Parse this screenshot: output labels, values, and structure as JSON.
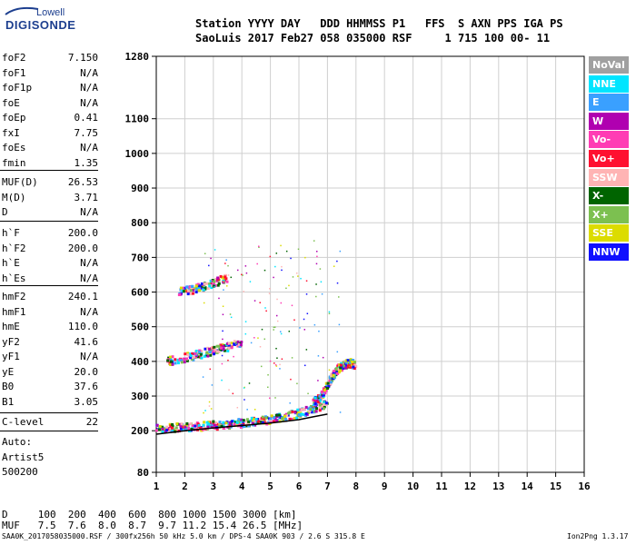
{
  "logo": {
    "top": "Lowell",
    "main": "DIGISONDE"
  },
  "header": {
    "line1": "Station YYYY DAY   DDD HHMMSS P1   FFS  S AXN PPS IGA PS",
    "line2": "SaoLuis 2017 Feb27 058 035000 RSF     1 715 100 00- 11"
  },
  "params_a": [
    {
      "label": "foF2",
      "value": "7.150"
    },
    {
      "label": "foF1",
      "value": "N/A"
    },
    {
      "label": "foF1p",
      "value": "N/A"
    },
    {
      "label": "foE",
      "value": "N/A"
    },
    {
      "label": "foEp",
      "value": "0.41"
    },
    {
      "label": "fxI",
      "value": "7.75"
    },
    {
      "label": "foEs",
      "value": "N/A"
    },
    {
      "label": "fmin",
      "value": "1.35"
    }
  ],
  "params_b": [
    {
      "label": "MUF(D)",
      "value": "26.53"
    },
    {
      "label": "M(D)",
      "value": "3.71"
    },
    {
      "label": "D",
      "value": "N/A"
    }
  ],
  "params_c": [
    {
      "label": "h`F",
      "value": "200.0"
    },
    {
      "label": "h`F2",
      "value": "200.0"
    },
    {
      "label": "h`E",
      "value": "N/A"
    },
    {
      "label": "h`Es",
      "value": "N/A"
    }
  ],
  "params_d": [
    {
      "label": "hmF2",
      "value": "240.1"
    },
    {
      "label": "hmF1",
      "value": "N/A"
    },
    {
      "label": "hmE",
      "value": "110.0"
    },
    {
      "label": "yF2",
      "value": "41.6"
    },
    {
      "label": "yF1",
      "value": "N/A"
    },
    {
      "label": "yE",
      "value": "20.0"
    },
    {
      "label": "B0",
      "value": "37.6"
    },
    {
      "label": "B1",
      "value": "3.05"
    }
  ],
  "clevel": {
    "label": "C-level",
    "value": "22"
  },
  "auto": {
    "line1": "Auto:",
    "line2": "Artist5",
    "line3": "500200"
  },
  "bottom": {
    "d_line": "D     100  200  400  600  800 1000 1500 3000 [km]",
    "muf_line": "MUF   7.5  7.6  8.0  8.7  9.7 11.2 15.4 26.5 [MHz]"
  },
  "footer": {
    "left": "SAA0K_2017058035000.RSF / 300fx256h 50 kHz 5.0 km / DPS-4 SAA0K 903 / 2.6 S 315.8 E",
    "right": "Ion2Png 1.3.17"
  },
  "legend": [
    {
      "label": "NoVal",
      "bg": "#a0a0a0",
      "fg": "#ffffff"
    },
    {
      "label": "NNE",
      "bg": "#00e5ff",
      "fg": "#ffffff"
    },
    {
      "label": "E",
      "bg": "#3aa0ff",
      "fg": "#ffffff"
    },
    {
      "label": "W",
      "bg": "#b000b0",
      "fg": "#ffffff"
    },
    {
      "label": "Vo-",
      "bg": "#ff3cb4",
      "fg": "#ffffff"
    },
    {
      "label": "Vo+",
      "bg": "#ff1030",
      "fg": "#ffffff"
    },
    {
      "label": "SSW",
      "bg": "#ffb4b4",
      "fg": "#ffffff"
    },
    {
      "label": "X-",
      "bg": "#006400",
      "fg": "#ffffff"
    },
    {
      "label": "X+",
      "bg": "#7cc050",
      "fg": "#ffffff"
    },
    {
      "label": "SSE",
      "bg": "#dcdc00",
      "fg": "#ffffff"
    },
    {
      "label": "NNW",
      "bg": "#1010ff",
      "fg": "#ffffff"
    }
  ],
  "chart_data": {
    "type": "scatter",
    "x_ticks": [
      1,
      2,
      3,
      4,
      5,
      6,
      7,
      8,
      9,
      10,
      11,
      12,
      13,
      14,
      15,
      16
    ],
    "y_ticks": [
      80,
      200,
      300,
      400,
      500,
      600,
      700,
      800,
      900,
      1000,
      1100,
      1280
    ],
    "xlim": [
      1,
      16
    ],
    "ylim": [
      80,
      1280
    ],
    "grid": true,
    "traces": [
      {
        "name": "F-trace base",
        "x": [
          1.0,
          1.5,
          2.0,
          2.5,
          3.0,
          3.5,
          4.0,
          4.5,
          5.0,
          5.5,
          6.0,
          6.5,
          7.0
        ],
        "y": [
          205,
          208,
          210,
          212,
          215,
          218,
          222,
          226,
          232,
          240,
          250,
          262,
          275
        ]
      },
      {
        "name": "F2 cusp",
        "x": [
          6.5,
          6.8,
          7.0,
          7.2,
          7.4,
          7.6,
          7.8,
          8.0
        ],
        "y": [
          280,
          300,
          330,
          360,
          380,
          390,
          395,
          390
        ]
      },
      {
        "name": "2F multi-hop",
        "x": [
          1.4,
          2.0,
          2.5,
          3.0,
          3.5,
          4.0
        ],
        "y": [
          400,
          410,
          420,
          430,
          440,
          455
        ]
      },
      {
        "name": "3F multi-hop",
        "x": [
          1.8,
          2.2,
          2.6,
          3.0,
          3.5
        ],
        "y": [
          600,
          605,
          615,
          625,
          640
        ]
      }
    ],
    "profile_curve": {
      "x": [
        1.0,
        2.0,
        3.0,
        4.0,
        5.0,
        6.0,
        6.5,
        7.0
      ],
      "y": [
        190,
        200,
        208,
        215,
        222,
        232,
        240,
        248
      ]
    }
  }
}
